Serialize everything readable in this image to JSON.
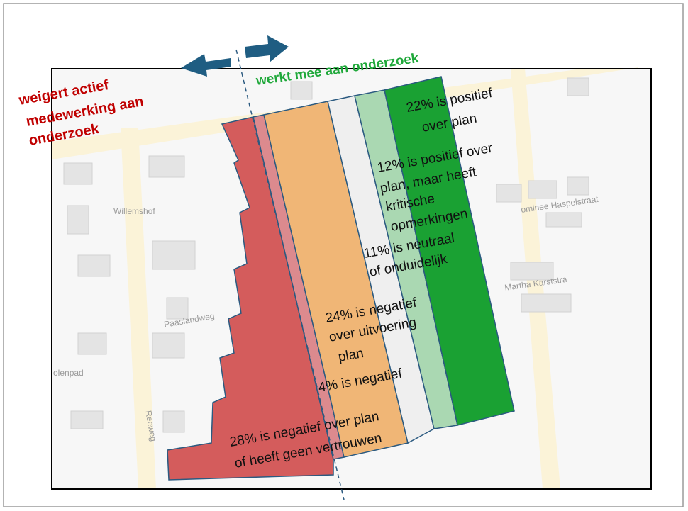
{
  "left_label": {
    "lines": [
      "weigert actief",
      "medewerking aan",
      "onderzoek"
    ]
  },
  "right_label": "werkt mee aan onderzoek",
  "streets": [
    "Willemshof",
    "Paaslandweg",
    "ominee Haspelstraat",
    "Martha Karststra",
    "olenpad",
    "Reeweg"
  ],
  "segments": [
    {
      "lines": [
        "22% is positief",
        "over plan"
      ]
    },
    {
      "lines": [
        "12% is positief over",
        "plan, maar heeft",
        "kritische",
        "opmerkingen"
      ]
    },
    {
      "lines": [
        "11% is neutraal",
        "of onduidelijk"
      ]
    },
    {
      "lines": [
        "24% is negatief",
        "over uitvoering",
        "plan"
      ]
    },
    {
      "lines": [
        "4% is negatief"
      ]
    },
    {
      "lines": [
        "28% is negatief over plan",
        "of heeft geen vertrouwen"
      ]
    }
  ]
}
